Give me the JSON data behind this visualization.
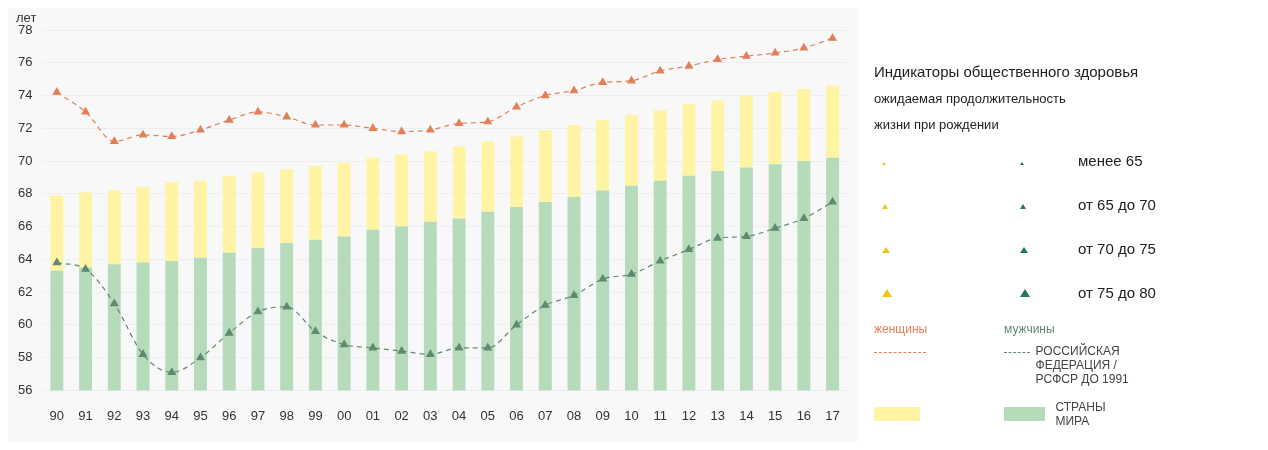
{
  "chart_data": {
    "type": "bar",
    "title": "Индикаторы общественного здоровья",
    "subtitle": "ожидаемая продолжительность жизни при рождении",
    "ylabel": "лет",
    "categories": [
      "90",
      "91",
      "92",
      "93",
      "94",
      "95",
      "96",
      "97",
      "98",
      "99",
      "00",
      "01",
      "02",
      "03",
      "04",
      "05",
      "06",
      "07",
      "08",
      "09",
      "10",
      "11",
      "12",
      "13",
      "14",
      "15",
      "16",
      "17"
    ],
    "stacked": true,
    "ylim": [
      56,
      78
    ],
    "yticks": [
      56,
      58,
      60,
      62,
      64,
      66,
      68,
      70,
      72,
      74,
      76,
      78
    ],
    "grid": "y",
    "legend": "right",
    "marker": "triangle",
    "series": [
      {
        "name": "СТРАНЫ МИРА",
        "color": "#b5dbbb",
        "values": [
          63.3,
          63.5,
          63.7,
          63.8,
          63.9,
          64.1,
          64.4,
          64.7,
          65.0,
          65.2,
          65.4,
          65.8,
          66.0,
          66.3,
          66.5,
          66.9,
          67.2,
          67.5,
          67.8,
          68.2,
          68.5,
          68.8,
          69.1,
          69.4,
          69.6,
          69.8,
          70.0,
          70.2
        ]
      },
      {
        "color": "#fff4a3",
        "base": [
          63.3,
          63.5,
          63.7,
          63.8,
          63.9,
          64.1,
          64.4,
          64.7,
          65.0,
          65.2,
          65.4,
          65.8,
          66.0,
          66.3,
          66.5,
          66.9,
          67.2,
          67.5,
          67.8,
          68.2,
          68.5,
          68.8,
          69.1,
          69.4,
          69.6,
          69.8,
          70.0,
          70.2
        ],
        "values": [
          4.6,
          4.6,
          4.5,
          4.6,
          4.8,
          4.7,
          4.7,
          4.6,
          4.5,
          4.5,
          4.5,
          4.4,
          4.4,
          4.3,
          4.4,
          4.3,
          4.3,
          4.4,
          4.4,
          4.3,
          4.3,
          4.3,
          4.4,
          4.3,
          4.4,
          4.4,
          4.4,
          4.4
        ]
      },
      {
        "name": "женщины",
        "type": "line",
        "line_style": "dashed",
        "color": "#e0805a",
        "values": [
          74.2,
          73.0,
          71.2,
          71.6,
          71.5,
          71.9,
          72.5,
          73.0,
          72.7,
          72.2,
          72.2,
          72.0,
          71.8,
          71.9,
          72.3,
          72.4,
          73.3,
          74.0,
          74.3,
          74.8,
          74.9,
          75.5,
          75.8,
          76.2,
          76.4,
          76.6,
          76.9,
          77.5
        ]
      },
      {
        "name": "мужчины",
        "type": "line",
        "line_style": "dashed",
        "color": "#5f8a70",
        "values": [
          63.8,
          63.4,
          61.3,
          58.2,
          57.1,
          58.0,
          59.5,
          60.8,
          61.1,
          59.6,
          58.8,
          58.6,
          58.4,
          58.2,
          58.6,
          58.6,
          60.0,
          61.2,
          61.8,
          62.8,
          63.1,
          63.9,
          64.6,
          65.3,
          65.4,
          65.9,
          66.5,
          67.5
        ]
      }
    ],
    "annotations": [
      "менее 65",
      "от 65 до 70",
      "от 70  до 75",
      "от 75 до 80",
      "РОССИЙСКАЯ ФЕДЕРАЦИЯ / РСФСР ДО 1991"
    ]
  }
}
